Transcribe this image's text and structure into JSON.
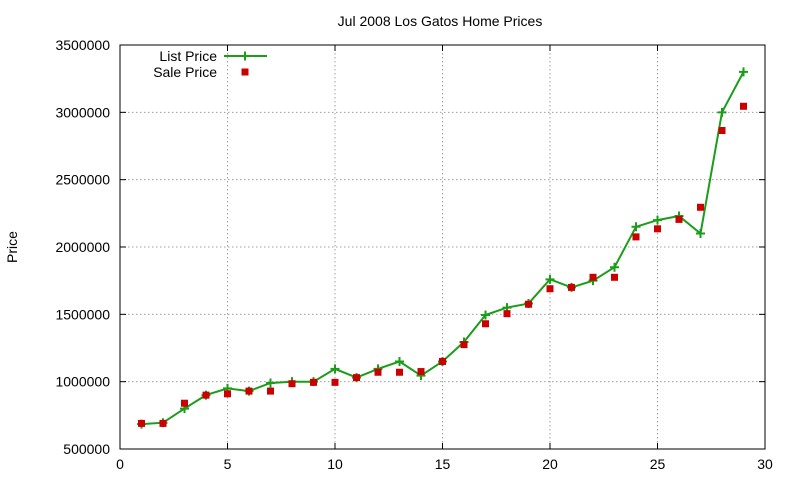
{
  "chart_data": {
    "type": "line",
    "title": "Jul 2008 Los Gatos Home Prices",
    "xlabel": "",
    "ylabel": "Price",
    "xlim": [
      0,
      30
    ],
    "ylim": [
      500000,
      3500000
    ],
    "xticks": [
      0,
      5,
      10,
      15,
      20,
      25,
      30
    ],
    "yticks": [
      500000,
      1000000,
      1500000,
      2000000,
      2500000,
      3000000,
      3500000
    ],
    "grid": true,
    "legend_position": "top-left",
    "series": [
      {
        "name": "List Price",
        "style": "line-with-plus-markers",
        "color": "#1a9e1a",
        "x": [
          1,
          2,
          3,
          4,
          5,
          6,
          7,
          8,
          9,
          10,
          11,
          12,
          13,
          14,
          15,
          16,
          17,
          18,
          19,
          20,
          21,
          22,
          23,
          24,
          25,
          26,
          27,
          28,
          29
        ],
        "values": [
          685000,
          695000,
          800000,
          900000,
          950000,
          930000,
          990000,
          1000000,
          1000000,
          1095000,
          1030000,
          1095000,
          1150000,
          1045000,
          1150000,
          1295000,
          1495000,
          1550000,
          1580000,
          1760000,
          1700000,
          1750000,
          1850000,
          2150000,
          2200000,
          2230000,
          2100000,
          3000000,
          3300000
        ]
      },
      {
        "name": "Sale Price",
        "style": "square-points",
        "color": "#cc0000",
        "x": [
          1,
          2,
          3,
          4,
          5,
          6,
          7,
          8,
          9,
          10,
          11,
          12,
          13,
          14,
          15,
          16,
          17,
          18,
          19,
          20,
          21,
          22,
          23,
          24,
          25,
          26,
          27,
          28,
          29
        ],
        "values": [
          690000,
          690000,
          840000,
          900000,
          910000,
          930000,
          930000,
          985000,
          995000,
          995000,
          1030000,
          1070000,
          1070000,
          1075000,
          1150000,
          1275000,
          1430000,
          1505000,
          1575000,
          1690000,
          1700000,
          1775000,
          1775000,
          2075000,
          2135000,
          2205000,
          2295000,
          2865000,
          3045000
        ]
      }
    ]
  }
}
